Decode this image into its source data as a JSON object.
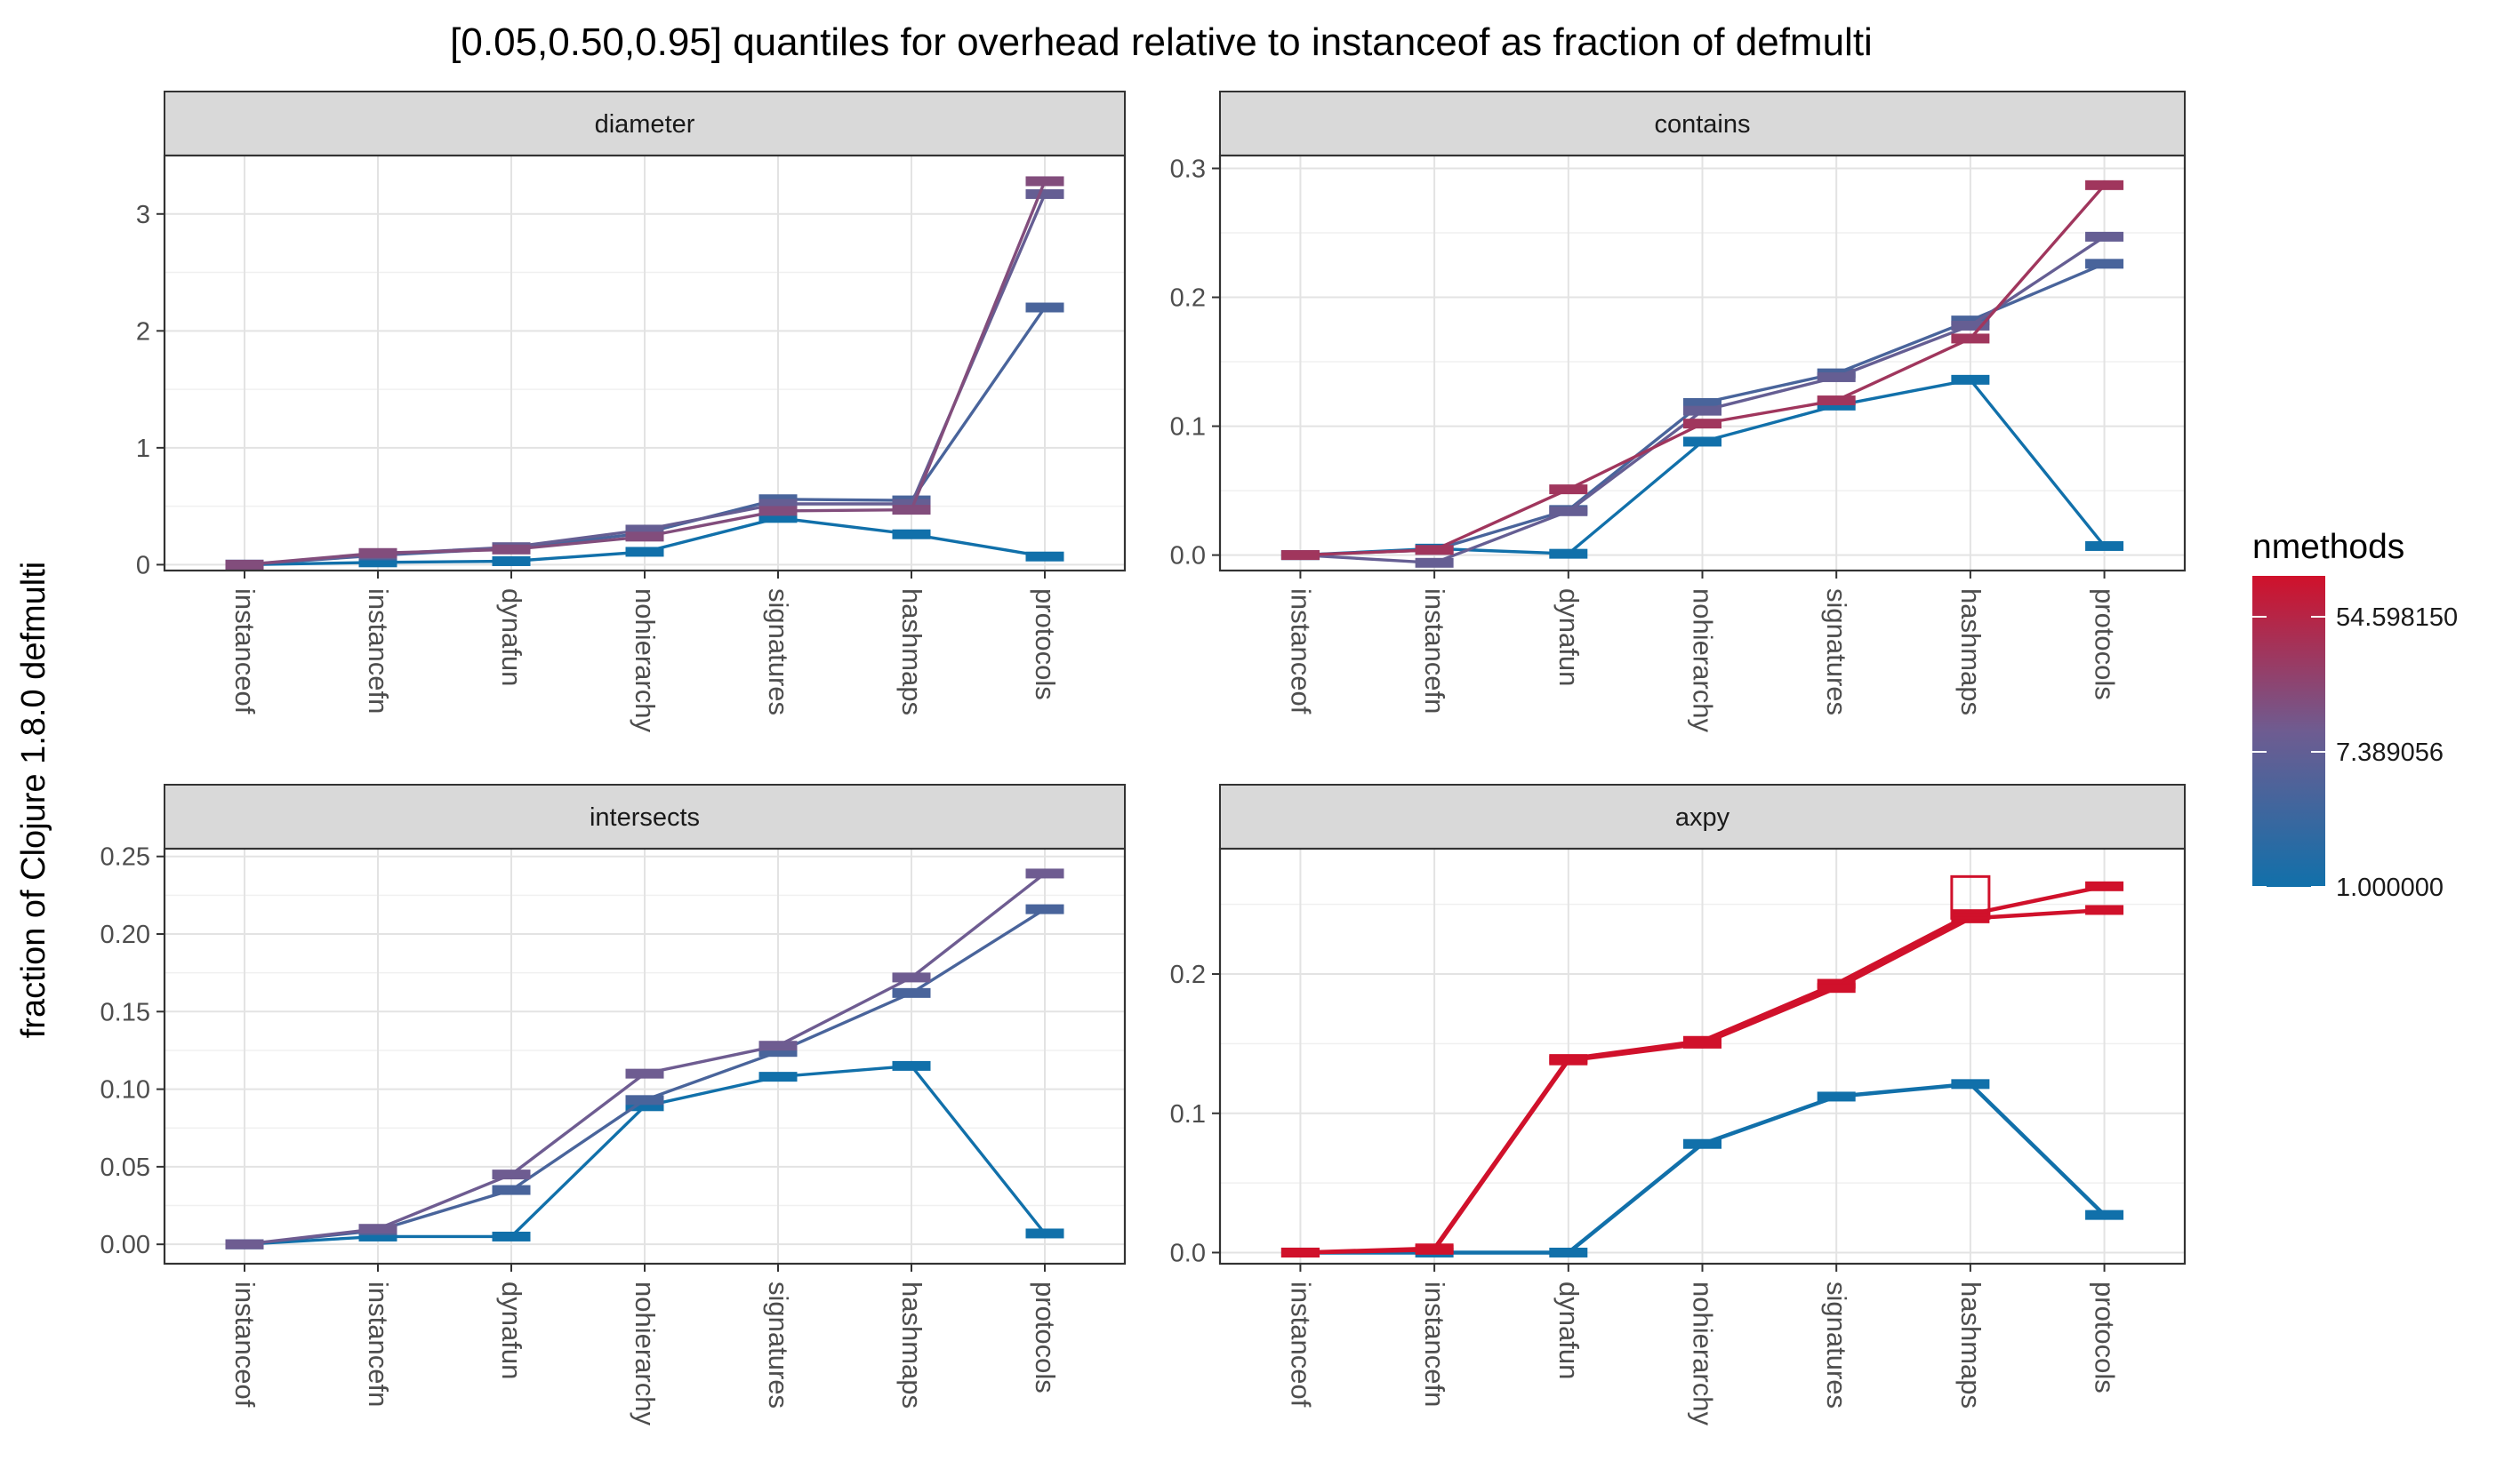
{
  "title": "[0.05,0.50,0.95] quantiles for overhead relative to instanceof as fraction of defmulti",
  "ylabel": "fraction of Clojure 1.8.0 defmulti",
  "legend": {
    "title": "nmethods",
    "labels": [
      "54.598150",
      "7.389056",
      "1.000000"
    ],
    "low_color": "#1170AA",
    "high_color": "#D0112B"
  },
  "chart_data": [
    {
      "type": "line",
      "panel": "diameter",
      "categories": [
        "instanceof",
        "instancefn",
        "dynafun",
        "nohierarchy",
        "signatures",
        "hashmaps",
        "protocols"
      ],
      "ylim": [
        -0.05,
        3.5
      ],
      "yticks": [
        "0",
        "1",
        "2",
        "3"
      ],
      "series": [
        {
          "nmethods": 1,
          "values": [
            0,
            0.02,
            0.03,
            0.11,
            0.4,
            0.26,
            0.07
          ]
        },
        {
          "nmethods": 4,
          "values": [
            0,
            0.08,
            0.14,
            0.27,
            0.56,
            0.55,
            2.2
          ]
        },
        {
          "nmethods": 8,
          "values": [
            0,
            0.09,
            0.15,
            0.3,
            0.52,
            0.52,
            3.17
          ]
        },
        {
          "nmethods": 16,
          "values": [
            0,
            0.1,
            0.13,
            0.24,
            0.46,
            0.47,
            3.28
          ]
        }
      ]
    },
    {
      "type": "line",
      "panel": "contains",
      "categories": [
        "instanceof",
        "instancefn",
        "dynafun",
        "nohierarchy",
        "signatures",
        "hashmaps",
        "protocols"
      ],
      "ylim": [
        -0.012,
        0.31
      ],
      "yticks": [
        "0.0",
        "0.1",
        "0.2",
        "0.3"
      ],
      "series": [
        {
          "nmethods": 1,
          "values": [
            0,
            0.005,
            0.001,
            0.088,
            0.116,
            0.136,
            0.007
          ]
        },
        {
          "nmethods": 4,
          "values": [
            0,
            0.004,
            0.035,
            0.118,
            0.141,
            0.182,
            0.226
          ]
        },
        {
          "nmethods": 8,
          "values": [
            0,
            -0.006,
            0.034,
            0.112,
            0.138,
            0.178,
            0.247
          ]
        },
        {
          "nmethods": 32,
          "values": [
            0,
            0.004,
            0.051,
            0.102,
            0.12,
            0.168,
            0.287
          ]
        }
      ]
    },
    {
      "type": "line",
      "panel": "intersects",
      "categories": [
        "instanceof",
        "instancefn",
        "dynafun",
        "nohierarchy",
        "signatures",
        "hashmaps",
        "protocols"
      ],
      "ylim": [
        -0.0125,
        0.255
      ],
      "yticks": [
        "0.00",
        "0.05",
        "0.10",
        "0.15",
        "0.20",
        "0.25"
      ],
      "series": [
        {
          "nmethods": 1,
          "values": [
            0,
            0.005,
            0.005,
            0.089,
            0.108,
            0.115,
            0.007
          ]
        },
        {
          "nmethods": 4,
          "values": [
            0,
            0.009,
            0.035,
            0.093,
            0.124,
            0.162,
            0.216
          ]
        },
        {
          "nmethods": 10,
          "values": [
            0,
            0.01,
            0.045,
            0.11,
            0.128,
            0.172,
            0.239
          ]
        }
      ]
    },
    {
      "type": "line",
      "panel": "axpy",
      "categories": [
        "instanceof",
        "instancefn",
        "dynafun",
        "nohierarchy",
        "signatures",
        "hashmaps",
        "protocols"
      ],
      "ylim": [
        -0.008,
        0.29
      ],
      "yticks": [
        "0.0",
        "0.1",
        "0.2"
      ],
      "series": [
        {
          "nmethods": 1,
          "values": [
            0,
            0,
            0,
            0.078,
            0.112,
            0.121,
            0.027
          ]
        },
        {
          "nmethods": 100,
          "values": [
            0,
            0.003,
            0.139,
            0.152,
            0.193,
            0.243,
            0.263
          ]
        },
        {
          "nmethods": 100,
          "values": [
            0,
            0.002,
            0.138,
            0.15,
            0.19,
            0.24,
            0.246
          ]
        }
      ]
    }
  ]
}
